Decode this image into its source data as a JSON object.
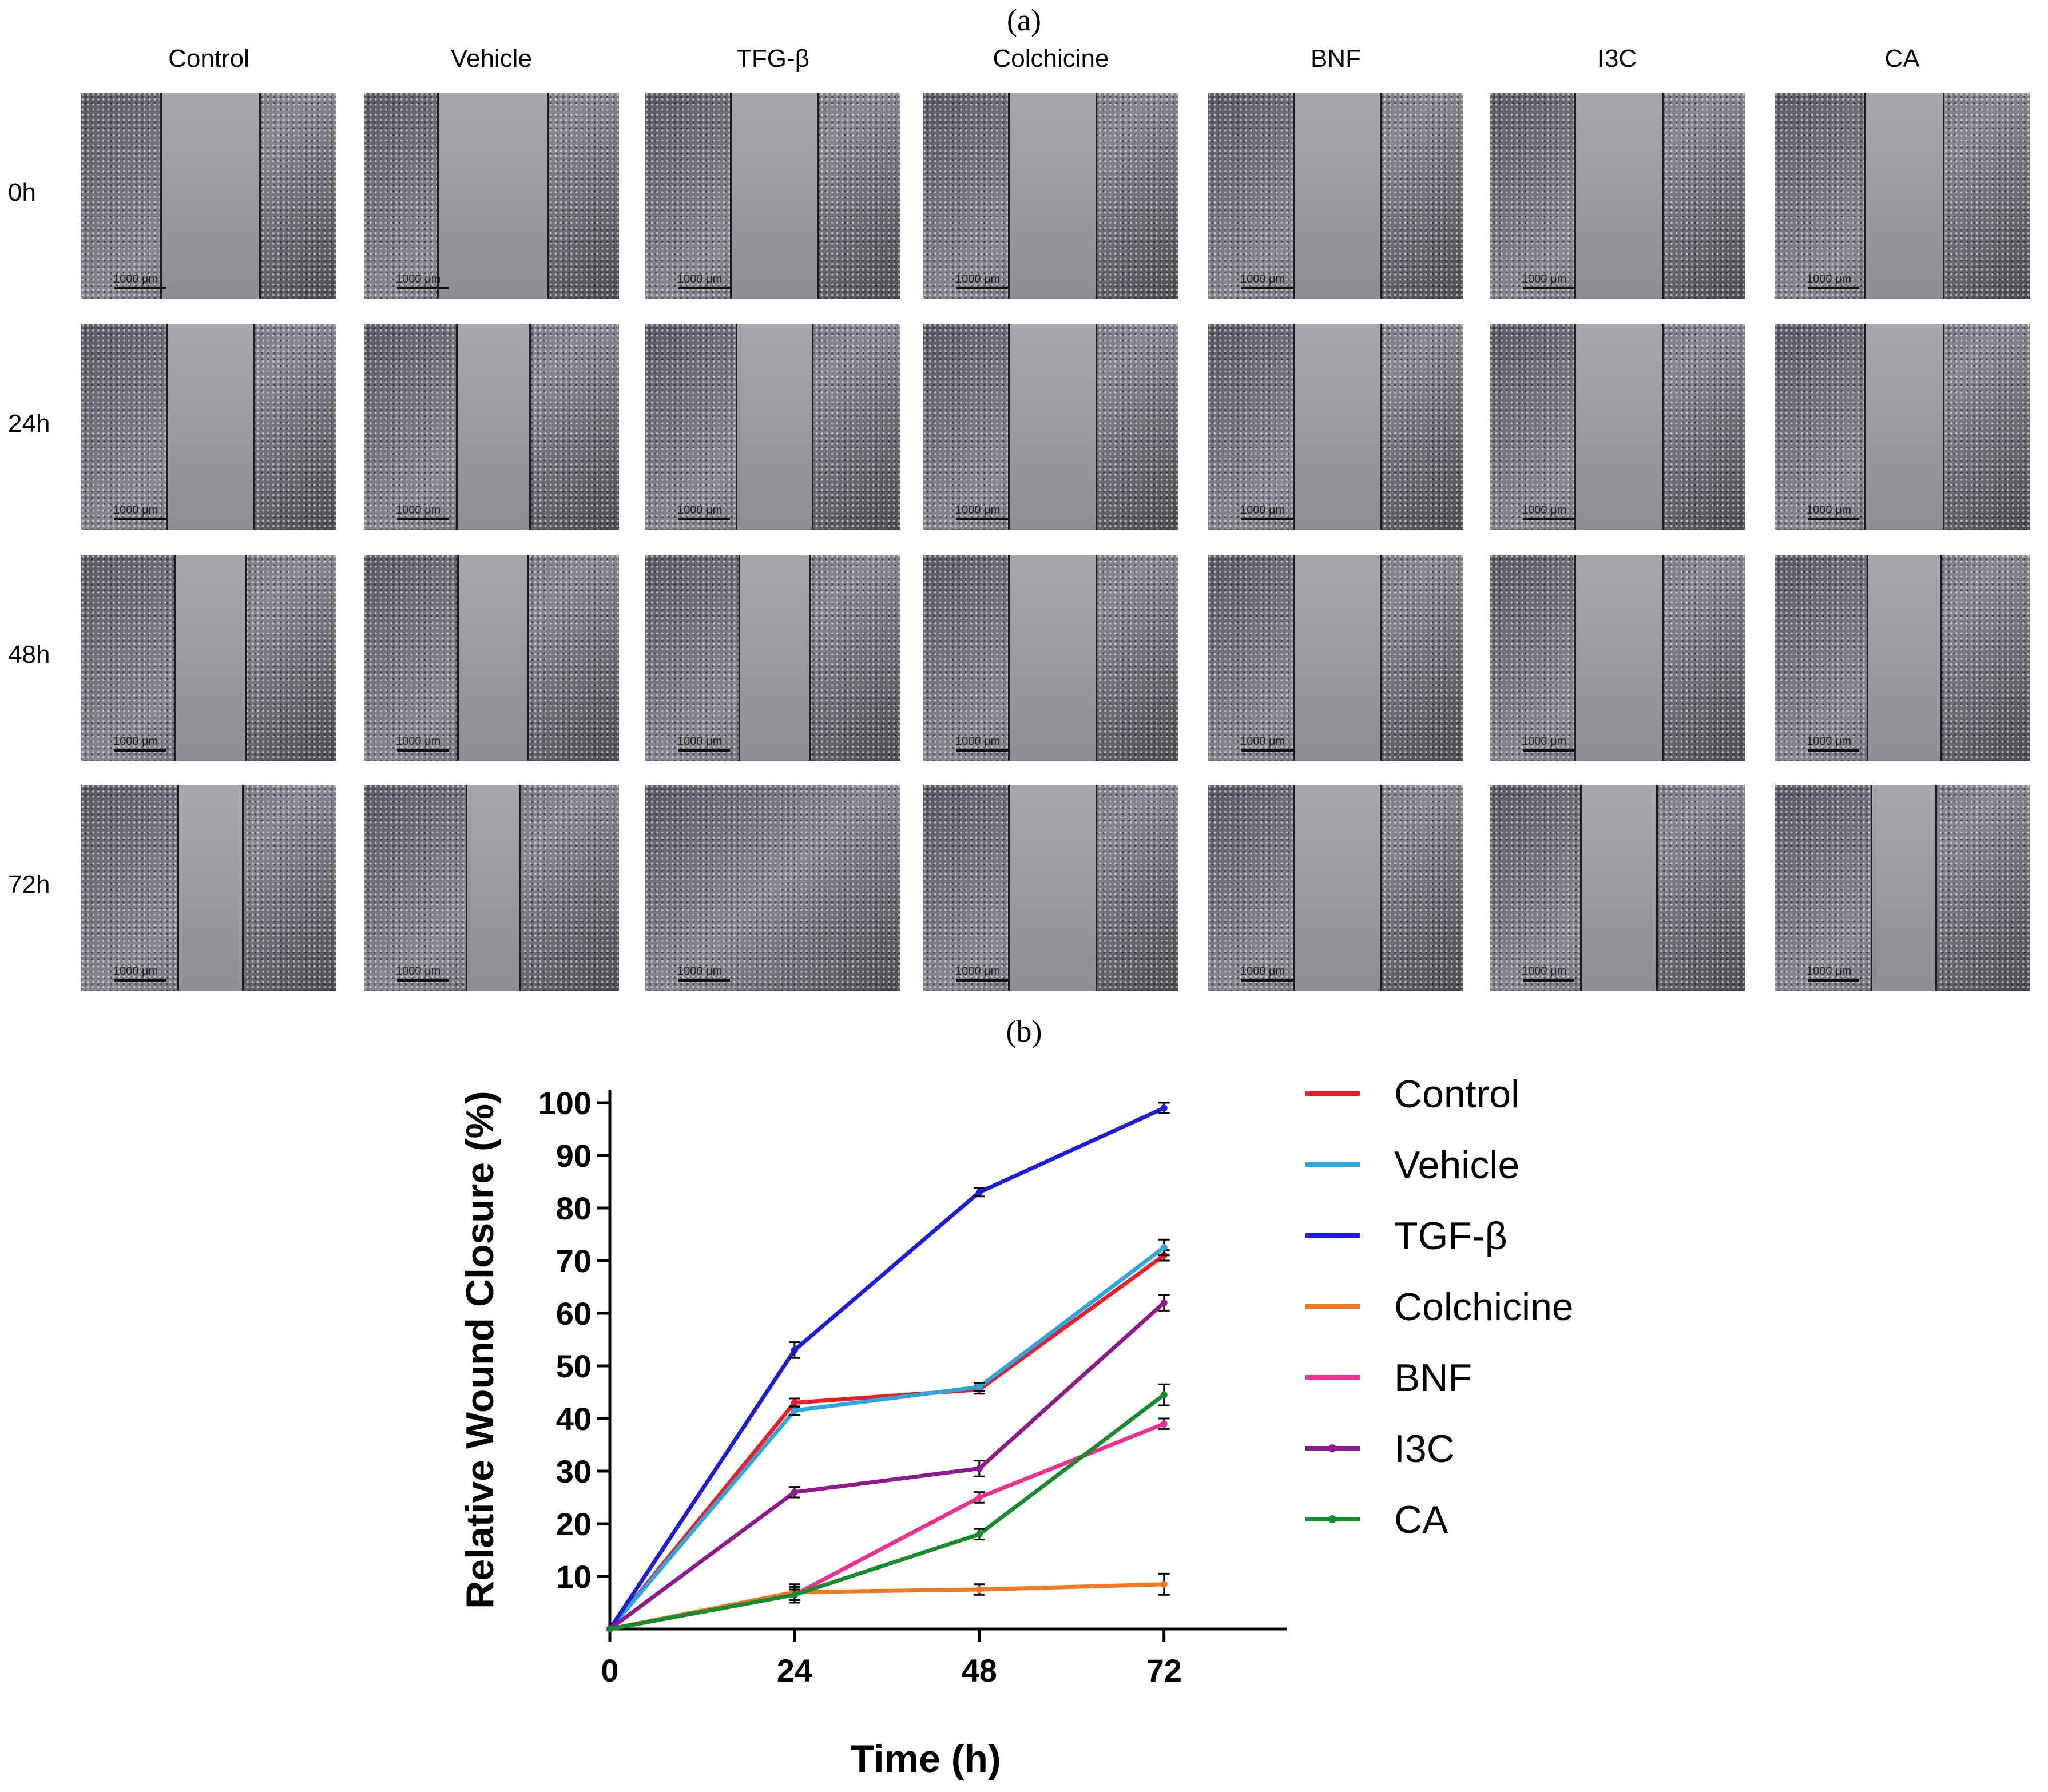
{
  "panels": {
    "a": "(a)",
    "b": "(b)"
  },
  "micrographs": {
    "columns": [
      "Control",
      "Vehicle",
      "TFG-β",
      "Colchicine",
      "BNF",
      "I3C",
      "CA"
    ],
    "rows": [
      "0h",
      "24h",
      "48h",
      "72h"
    ],
    "scale_bar_label": "1000 μm"
  },
  "chart_data": {
    "type": "line",
    "xlabel": "Time (h)",
    "ylabel": "Relative Wound Closure (%)",
    "x": [
      0,
      24,
      48,
      72
    ],
    "xlim": [
      0,
      88
    ],
    "ylim": [
      0,
      100
    ],
    "xticks": [
      "0",
      "24",
      "48",
      "72"
    ],
    "yticks": [
      "10",
      "20",
      "30",
      "40",
      "50",
      "60",
      "70",
      "80",
      "90",
      "100"
    ],
    "legend_position": "right",
    "series": [
      {
        "name": "Control",
        "color": "#ee1c25",
        "values": [
          0,
          43,
          45.5,
          71
        ],
        "errors": [
          0,
          0.8,
          0.8,
          1.0
        ]
      },
      {
        "name": "Vehicle",
        "color": "#29a8e0",
        "values": [
          0,
          41.5,
          46,
          72.5
        ],
        "errors": [
          0,
          0.8,
          0.8,
          1.5
        ]
      },
      {
        "name": "TGF-β",
        "color": "#1c1ce0",
        "values": [
          0,
          53,
          83,
          99
        ],
        "errors": [
          0,
          1.5,
          0.8,
          1.0
        ]
      },
      {
        "name": "Colchicine",
        "color": "#f47820",
        "values": [
          0,
          7,
          7.5,
          8.5
        ],
        "errors": [
          0,
          1.5,
          1.0,
          2.0
        ]
      },
      {
        "name": "BNF",
        "color": "#ee2f8c",
        "values": [
          0,
          6.5,
          25,
          39
        ],
        "errors": [
          0,
          1.5,
          1.0,
          1.0
        ]
      },
      {
        "name": "I3C",
        "color": "#8e1a8e",
        "values": [
          0,
          26,
          30.5,
          62
        ],
        "errors": [
          0,
          1.0,
          1.5,
          1.5
        ]
      },
      {
        "name": "CA",
        "color": "#168c2c",
        "values": [
          0,
          6.5,
          18,
          44.5
        ],
        "errors": [
          0,
          1.0,
          1.0,
          2.0
        ]
      }
    ]
  }
}
